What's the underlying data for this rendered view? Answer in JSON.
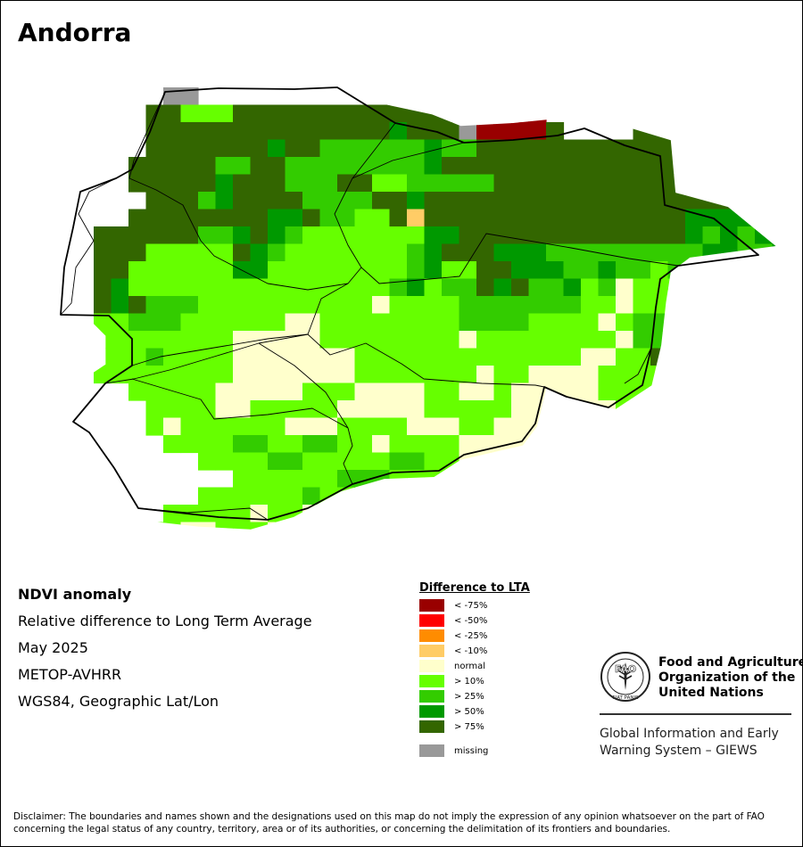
{
  "map": {
    "title": "Andorra",
    "layers": [
      "NDVI anomaly raster",
      "national boundary",
      "parish boundaries"
    ]
  },
  "info": {
    "product": "NDVI anomaly",
    "description": "Relative difference to Long Term Average",
    "period": "May 2025",
    "sensor": "METOP-AVHRR",
    "projection": "WGS84, Geographic Lat/Lon"
  },
  "legend": {
    "title": "Difference to LTA",
    "items": [
      {
        "label": "< -75%",
        "color": "#990000"
      },
      {
        "label": "< -50%",
        "color": "#ff0000"
      },
      {
        "label": "< -25%",
        "color": "#ff8c00"
      },
      {
        "label": "< -10%",
        "color": "#ffcc66"
      },
      {
        "label": "normal",
        "color": "#ffffcc"
      },
      {
        "label": "> 10%",
        "color": "#66ff00"
      },
      {
        "label": "> 25%",
        "color": "#33cc00"
      },
      {
        "label": "> 50%",
        "color": "#009900"
      },
      {
        "label": "> 75%",
        "color": "#336600"
      }
    ],
    "missing": {
      "label": "missing",
      "color": "#999999"
    }
  },
  "fao": {
    "name_lines": [
      "Food and Agriculture",
      "Organization of the",
      "United Nations"
    ],
    "logo_text": "FAO",
    "motto": "FIAT PANIS",
    "giews_lines": [
      "Global Information and Early",
      "Warning System – GIEWS"
    ]
  },
  "disclaimer_lines": [
    "Disclaimer: The boundaries and names shown and the designations used on this map do not imply the expression of any opinion whatsoever on the part of FAO",
    "concerning the legal status of any country, territory, area or of its authorities, or concerning the delimitation of its frontiers and boundaries."
  ]
}
